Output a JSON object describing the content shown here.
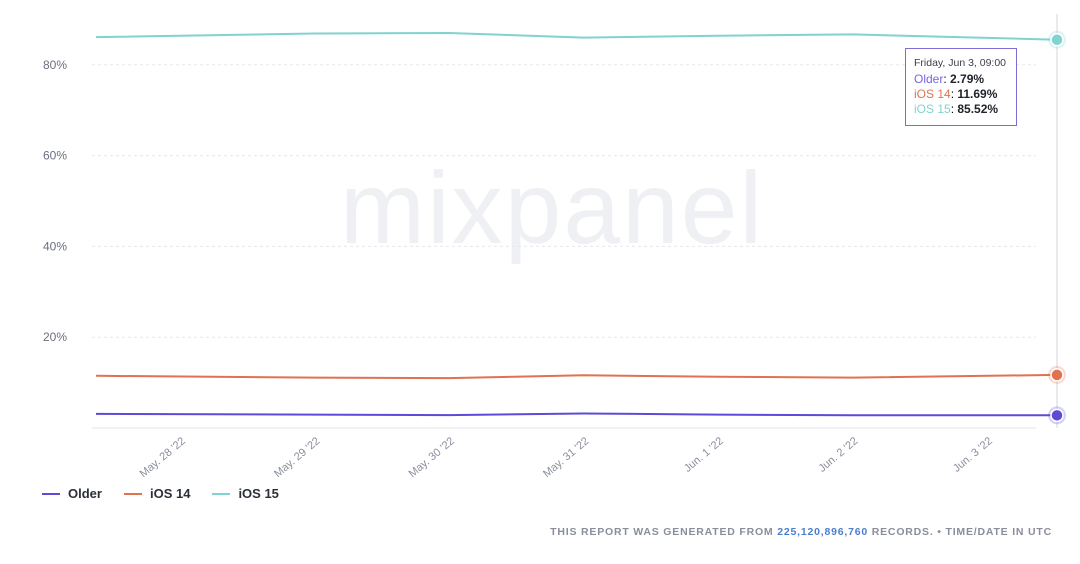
{
  "watermark": "mixpanel",
  "chart_data": {
    "type": "line",
    "x": [
      "May. 28 '22",
      "May. 29 '22",
      "May. 30 '22",
      "May. 31 '22",
      "Jun. 1 '22",
      "Jun. 2 '22",
      "Jun. 3 '22"
    ],
    "y_ticks": [
      "20%",
      "40%",
      "60%",
      "80%"
    ],
    "ylim": [
      0,
      90
    ],
    "grid": true,
    "legend_position": "bottom-left",
    "series": [
      {
        "name": "Older",
        "color": "#5b4bd6",
        "points": [
          [
            0,
            3.1
          ],
          [
            1,
            2.95
          ],
          [
            2,
            2.85
          ],
          [
            3,
            3.2
          ],
          [
            4,
            2.95
          ],
          [
            5,
            2.8
          ],
          [
            6,
            2.79
          ]
        ]
      },
      {
        "name": "iOS 14",
        "color": "#e0724f",
        "points": [
          [
            0,
            11.5
          ],
          [
            1,
            11.1
          ],
          [
            2,
            11.0
          ],
          [
            3,
            11.6
          ],
          [
            4,
            11.3
          ],
          [
            5,
            11.1
          ],
          [
            6,
            11.69
          ]
        ]
      },
      {
        "name": "iOS 15",
        "color": "#82d2cf",
        "points": [
          [
            0,
            86.1
          ],
          [
            1,
            86.9
          ],
          [
            2,
            87.0
          ],
          [
            3,
            86.0
          ],
          [
            4,
            86.4
          ],
          [
            5,
            86.7
          ],
          [
            6,
            85.52
          ]
        ]
      }
    ]
  },
  "tooltip": {
    "title": "Friday, Jun 3, 09:00",
    "items": [
      {
        "label": "Older",
        "value": "2.79%",
        "color": "#7b62e6"
      },
      {
        "label": "iOS 14",
        "value": "11.69%",
        "color": "#e0724f"
      },
      {
        "label": "iOS 15",
        "value": "85.52%",
        "color": "#82d2cf"
      }
    ]
  },
  "footer": {
    "prefix": "THIS REPORT WAS GENERATED FROM ",
    "count": "225,120,896,760",
    "suffix": " RECORDS. • TIME/DATE IN UTC"
  }
}
